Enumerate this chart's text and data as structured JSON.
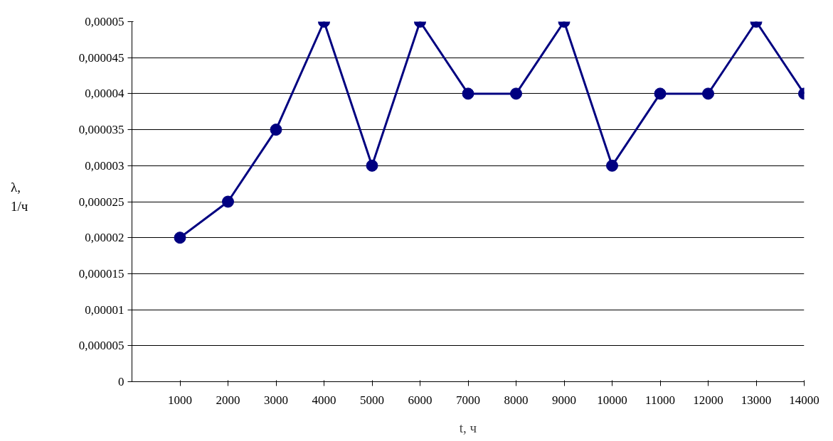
{
  "chart_data": {
    "type": "line",
    "xlabel": "t, ч",
    "ylabel": "λ,\n1/ч",
    "categories": [
      "1000",
      "2000",
      "3000",
      "4000",
      "5000",
      "6000",
      "7000",
      "8000",
      "9000",
      "10000",
      "11000",
      "12000",
      "13000",
      "14000"
    ],
    "series": [
      {
        "color": "#000080",
        "values": [
          2e-05,
          2.5e-05,
          3.5e-05,
          5e-05,
          3e-05,
          5e-05,
          4e-05,
          4e-05,
          5e-05,
          3e-05,
          4e-05,
          4e-05,
          5e-05,
          4e-05
        ]
      }
    ],
    "ylim": [
      0,
      5e-05
    ],
    "yticks": [
      0,
      {
        "value": 5e-06,
        "label": "0,000005"
      },
      {
        "value": 1e-05,
        "label": "0,00001"
      },
      {
        "value": 1.5e-05,
        "label": "0,000015"
      },
      {
        "value": 2e-05,
        "label": "0,00002"
      },
      {
        "value": 2.5e-05,
        "label": "0,000025"
      },
      {
        "value": 3e-05,
        "label": "0,00003"
      },
      {
        "value": 3.5e-05,
        "label": "0,000035"
      },
      {
        "value": 4e-05,
        "label": "0,00004"
      },
      {
        "value": 4.5e-05,
        "label": "0,000045"
      },
      {
        "value": 5e-05,
        "label": "0,00005"
      }
    ],
    "grid": "y",
    "marker": "circle",
    "line_style": "solid"
  }
}
